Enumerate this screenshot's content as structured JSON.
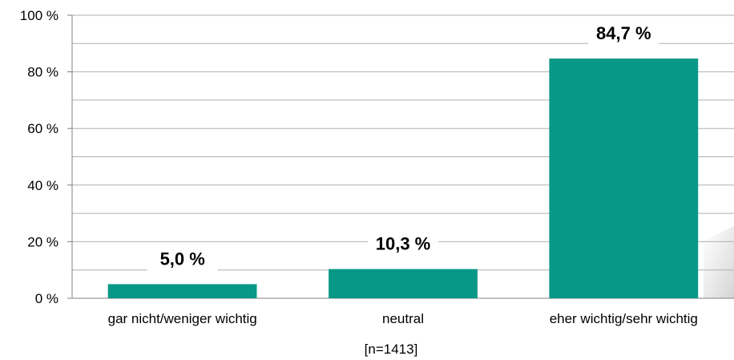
{
  "chart_data": {
    "type": "bar",
    "categories": [
      "gar nicht/weniger wichtig",
      "neutral",
      "eher wichtig/sehr wichtig"
    ],
    "values": [
      5.0,
      10.3,
      84.7
    ],
    "data_labels": [
      "5,0 %",
      "10,3 %",
      "84,7 %"
    ],
    "ylim": [
      0,
      100
    ],
    "yticks": [
      0,
      20,
      40,
      60,
      80,
      100
    ],
    "ytick_labels": [
      "0 %",
      "20 %",
      "40 %",
      "60 %",
      "80 %",
      "100 %"
    ],
    "minor_gridlines": [
      10,
      30,
      50,
      70,
      90
    ],
    "grid": true,
    "bar_color": "#079887",
    "grid_color": "#b0b0b0",
    "note": "[n=1413]"
  }
}
